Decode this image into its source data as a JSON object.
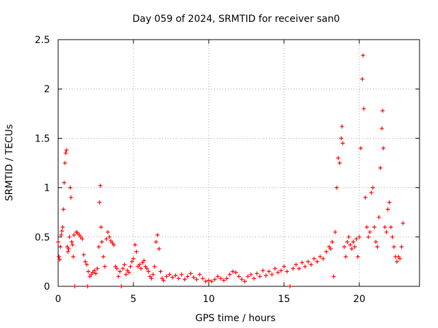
{
  "chart_data": {
    "type": "scatter",
    "title": "Day 059 of 2024, SRMTID for receiver san0",
    "xlabel": "GPS time / hours",
    "ylabel": "SRMTID / TECUs",
    "xlim": [
      0,
      24
    ],
    "ylim": [
      0,
      2.5
    ],
    "xticks": [
      0,
      5,
      10,
      15,
      20
    ],
    "xtick_labels": [
      "0",
      "5",
      "10",
      "15",
      "20"
    ],
    "yticks": [
      0,
      0.5,
      1,
      1.5,
      2,
      2.5
    ],
    "ytick_labels": [
      "0",
      "0.5",
      "1",
      "1.5",
      "2",
      "2.5"
    ],
    "grid": true,
    "marker": "+",
    "color": "#ff0000",
    "series": [
      {
        "name": "SRMTID",
        "points": [
          [
            0.0,
            0.45
          ],
          [
            0.05,
            0.3
          ],
          [
            0.1,
            0.27
          ],
          [
            0.15,
            0.4
          ],
          [
            0.2,
            0.52
          ],
          [
            0.25,
            0.56
          ],
          [
            0.3,
            0.6
          ],
          [
            0.35,
            0.78
          ],
          [
            0.4,
            1.05
          ],
          [
            0.45,
            1.25
          ],
          [
            0.5,
            1.35
          ],
          [
            0.55,
            1.38
          ],
          [
            0.6,
            0.4
          ],
          [
            0.65,
            0.35
          ],
          [
            0.7,
            0.38
          ],
          [
            0.75,
            0.5
          ],
          [
            0.8,
            1.0
          ],
          [
            0.85,
            0.9
          ],
          [
            0.9,
            0.45
          ],
          [
            0.95,
            0.42
          ],
          [
            1.0,
            0.3
          ],
          [
            1.05,
            0.52
          ],
          [
            1.1,
            0.0
          ],
          [
            1.2,
            0.55
          ],
          [
            1.3,
            0.54
          ],
          [
            1.4,
            0.52
          ],
          [
            1.5,
            0.5
          ],
          [
            1.6,
            0.48
          ],
          [
            1.7,
            0.32
          ],
          [
            1.8,
            0.25
          ],
          [
            1.9,
            0.22
          ],
          [
            1.95,
            0.0
          ],
          [
            2.0,
            0.15
          ],
          [
            2.1,
            0.1
          ],
          [
            2.2,
            0.12
          ],
          [
            2.3,
            0.14
          ],
          [
            2.4,
            0.16
          ],
          [
            2.5,
            0.13
          ],
          [
            2.6,
            0.18
          ],
          [
            2.7,
            0.4
          ],
          [
            2.75,
            0.85
          ],
          [
            2.8,
            1.02
          ],
          [
            2.85,
            0.6
          ],
          [
            2.9,
            0.45
          ],
          [
            3.0,
            0.3
          ],
          [
            3.1,
            0.2
          ],
          [
            3.2,
            0.48
          ],
          [
            3.3,
            0.55
          ],
          [
            3.4,
            0.5
          ],
          [
            3.5,
            0.46
          ],
          [
            3.6,
            0.44
          ],
          [
            3.7,
            0.42
          ],
          [
            3.8,
            0.2
          ],
          [
            3.9,
            0.18
          ],
          [
            4.0,
            0.1
          ],
          [
            4.1,
            0.15
          ],
          [
            4.2,
            0.0
          ],
          [
            4.3,
            0.18
          ],
          [
            4.4,
            0.22
          ],
          [
            4.5,
            0.12
          ],
          [
            4.6,
            0.16
          ],
          [
            4.7,
            0.14
          ],
          [
            4.8,
            0.2
          ],
          [
            4.9,
            0.25
          ],
          [
            5.0,
            0.28
          ],
          [
            5.1,
            0.42
          ],
          [
            5.2,
            0.35
          ],
          [
            5.3,
            0.2
          ],
          [
            5.4,
            0.22
          ],
          [
            5.5,
            0.18
          ],
          [
            5.6,
            0.24
          ],
          [
            5.7,
            0.26
          ],
          [
            5.8,
            0.2
          ],
          [
            5.9,
            0.18
          ],
          [
            6.0,
            0.15
          ],
          [
            6.1,
            0.1
          ],
          [
            6.2,
            0.08
          ],
          [
            6.3,
            0.12
          ],
          [
            6.4,
            0.2
          ],
          [
            6.5,
            0.45
          ],
          [
            6.6,
            0.52
          ],
          [
            6.7,
            0.38
          ],
          [
            6.8,
            0.15
          ],
          [
            6.9,
            0.08
          ],
          [
            7.0,
            0.06
          ],
          [
            7.2,
            0.1
          ],
          [
            7.4,
            0.12
          ],
          [
            7.6,
            0.09
          ],
          [
            7.8,
            0.11
          ],
          [
            8.0,
            0.08
          ],
          [
            8.2,
            0.12
          ],
          [
            8.4,
            0.07
          ],
          [
            8.6,
            0.1
          ],
          [
            8.8,
            0.13
          ],
          [
            9.0,
            0.09
          ],
          [
            9.2,
            0.07
          ],
          [
            9.4,
            0.12
          ],
          [
            9.6,
            0.08
          ],
          [
            9.8,
            0.05
          ],
          [
            10.0,
            0.06
          ],
          [
            10.2,
            0.05
          ],
          [
            10.4,
            0.07
          ],
          [
            10.6,
            0.1
          ],
          [
            10.8,
            0.08
          ],
          [
            11.0,
            0.06
          ],
          [
            11.2,
            0.08
          ],
          [
            11.4,
            0.12
          ],
          [
            11.6,
            0.15
          ],
          [
            11.8,
            0.14
          ],
          [
            12.0,
            0.1
          ],
          [
            12.2,
            0.07
          ],
          [
            12.4,
            0.05
          ],
          [
            12.6,
            0.1
          ],
          [
            12.8,
            0.12
          ],
          [
            13.0,
            0.08
          ],
          [
            13.2,
            0.13
          ],
          [
            13.4,
            0.1
          ],
          [
            13.6,
            0.16
          ],
          [
            13.8,
            0.11
          ],
          [
            14.0,
            0.15
          ],
          [
            14.2,
            0.12
          ],
          [
            14.4,
            0.18
          ],
          [
            14.6,
            0.14
          ],
          [
            14.8,
            0.16
          ],
          [
            15.0,
            0.2
          ],
          [
            15.2,
            0.15
          ],
          [
            15.4,
            0.0
          ],
          [
            15.6,
            0.18
          ],
          [
            15.8,
            0.22
          ],
          [
            16.0,
            0.18
          ],
          [
            16.2,
            0.24
          ],
          [
            16.4,
            0.2
          ],
          [
            16.6,
            0.25
          ],
          [
            16.8,
            0.22
          ],
          [
            17.0,
            0.28
          ],
          [
            17.2,
            0.25
          ],
          [
            17.4,
            0.3
          ],
          [
            17.6,
            0.28
          ],
          [
            17.8,
            0.35
          ],
          [
            18.0,
            0.4
          ],
          [
            18.1,
            0.38
          ],
          [
            18.2,
            0.45
          ],
          [
            18.3,
            0.1
          ],
          [
            18.4,
            0.55
          ],
          [
            18.5,
            1.0
          ],
          [
            18.6,
            1.3
          ],
          [
            18.7,
            1.25
          ],
          [
            18.8,
            1.5
          ],
          [
            18.85,
            1.62
          ],
          [
            18.9,
            1.45
          ],
          [
            19.0,
            0.4
          ],
          [
            19.1,
            0.3
          ],
          [
            19.2,
            0.45
          ],
          [
            19.3,
            0.5
          ],
          [
            19.4,
            0.42
          ],
          [
            19.5,
            0.38
          ],
          [
            19.6,
            0.45
          ],
          [
            19.7,
            0.4
          ],
          [
            19.8,
            0.48
          ],
          [
            19.9,
            0.3
          ],
          [
            20.0,
            0.5
          ],
          [
            20.1,
            1.4
          ],
          [
            20.2,
            2.1
          ],
          [
            20.25,
            2.34
          ],
          [
            20.3,
            1.8
          ],
          [
            20.4,
            0.9
          ],
          [
            20.5,
            0.6
          ],
          [
            20.6,
            0.5
          ],
          [
            20.7,
            0.55
          ],
          [
            20.8,
            0.95
          ],
          [
            20.9,
            1.0
          ],
          [
            21.0,
            0.6
          ],
          [
            21.1,
            0.45
          ],
          [
            21.2,
            0.4
          ],
          [
            21.3,
            0.7
          ],
          [
            21.4,
            1.2
          ],
          [
            21.5,
            1.6
          ],
          [
            21.55,
            1.78
          ],
          [
            21.6,
            1.4
          ],
          [
            21.7,
            0.6
          ],
          [
            21.8,
            0.55
          ],
          [
            21.9,
            0.78
          ],
          [
            22.0,
            0.85
          ],
          [
            22.1,
            0.6
          ],
          [
            22.2,
            0.5
          ],
          [
            22.3,
            0.4
          ],
          [
            22.4,
            0.3
          ],
          [
            22.5,
            0.25
          ],
          [
            22.6,
            0.3
          ],
          [
            22.7,
            0.28
          ],
          [
            22.8,
            0.4
          ],
          [
            22.9,
            0.64
          ]
        ]
      }
    ]
  }
}
